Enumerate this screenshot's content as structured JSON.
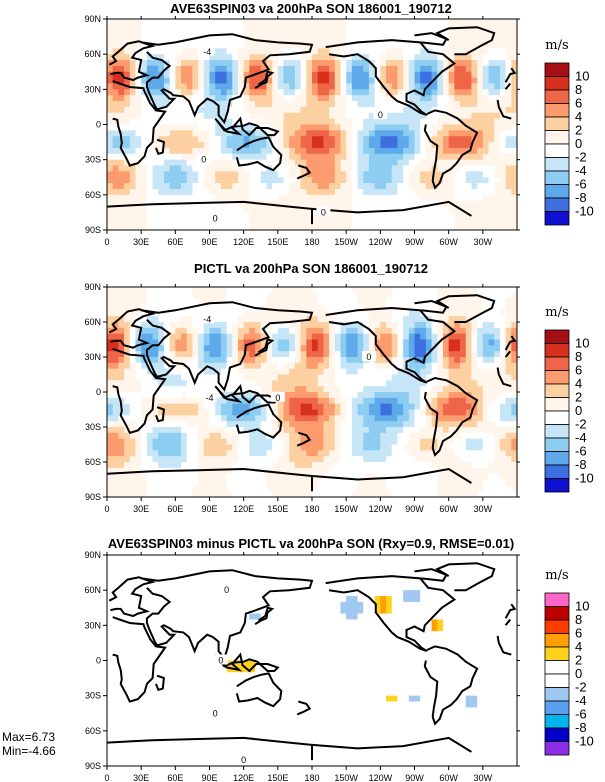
{
  "chart_data": [
    {
      "type": "heatmap",
      "title": "AVE63SPIN03 va 200hPa SON 186001_190712",
      "unit": "m/s",
      "xticks": [
        "0",
        "30E",
        "60E",
        "90E",
        "120E",
        "150E",
        "180",
        "150W",
        "120W",
        "90W",
        "60W",
        "30W"
      ],
      "yticks": [
        "90N",
        "60N",
        "30N",
        "0",
        "30S",
        "60S",
        "90S"
      ],
      "xlim": [
        0,
        360
      ],
      "ylim": [
        -90,
        90
      ],
      "colorbar": {
        "levels": [
          "10",
          "8",
          "6",
          "4",
          "2",
          "0",
          "-2",
          "-4",
          "-6",
          "-8",
          "-10"
        ],
        "colors": [
          "#a50f15",
          "#d7301f",
          "#ef6548",
          "#fc9b6e",
          "#fdd0a2",
          "#fff5eb",
          "#ffffff",
          "#c6e6f7",
          "#8ecdf2",
          "#5ea9ea",
          "#3d6fe0",
          "#1010d0"
        ]
      },
      "contour_labels": [
        {
          "text": "-4",
          "lon": 88,
          "lat": 62
        },
        {
          "text": "0",
          "lon": 240,
          "lat": 8
        },
        {
          "text": "0",
          "lon": 85,
          "lat": -30
        },
        {
          "text": "0",
          "lon": 95,
          "lat": -80
        },
        {
          "text": "0",
          "lon": 190,
          "lat": -75
        }
      ]
    },
    {
      "type": "heatmap",
      "title": "PICTL va 200hPa SON 186001_190712",
      "unit": "m/s",
      "xticks": [
        "0",
        "30E",
        "60E",
        "90E",
        "120E",
        "150E",
        "180",
        "150W",
        "120W",
        "90W",
        "60W",
        "30W"
      ],
      "yticks": [
        "90N",
        "60N",
        "30N",
        "0",
        "30S",
        "60S",
        "90S"
      ],
      "xlim": [
        0,
        360
      ],
      "ylim": [
        -90,
        90
      ],
      "colorbar": {
        "levels": [
          "10",
          "8",
          "6",
          "4",
          "2",
          "0",
          "-2",
          "-4",
          "-6",
          "-8",
          "-10"
        ],
        "colors": [
          "#a50f15",
          "#d7301f",
          "#ef6548",
          "#fc9b6e",
          "#fdd0a2",
          "#fff5eb",
          "#ffffff",
          "#c6e6f7",
          "#8ecdf2",
          "#5ea9ea",
          "#3d6fe0",
          "#1010d0"
        ]
      },
      "contour_labels": [
        {
          "text": "-4",
          "lon": 88,
          "lat": 62
        },
        {
          "text": "0",
          "lon": 230,
          "lat": 30
        },
        {
          "text": "-4",
          "lon": 90,
          "lat": -5
        },
        {
          "text": "0",
          "lon": 150,
          "lat": -5
        }
      ]
    },
    {
      "type": "heatmap",
      "title": "AVE63SPIN03 minus PICTL va 200hPa SON (Rxy=0.9, RMSE=0.01)",
      "unit": "m/s",
      "xticks": [
        "0",
        "30E",
        "60E",
        "90E",
        "120E",
        "150E",
        "180",
        "150W",
        "120W",
        "90W",
        "60W",
        "30W"
      ],
      "yticks": [
        "90N",
        "60N",
        "30N",
        "0",
        "30S",
        "60S",
        "90S"
      ],
      "xlim": [
        0,
        360
      ],
      "ylim": [
        -90,
        90
      ],
      "colorbar": {
        "levels": [
          "10",
          "8",
          "6",
          "4",
          "2",
          "0",
          "-2",
          "-4",
          "-6",
          "-8",
          "-10"
        ],
        "colors": [
          "#ff66cc",
          "#c00000",
          "#ff3c00",
          "#ffa000",
          "#ffd21e",
          "#ffffff",
          "#ffffff",
          "#a0c8f0",
          "#5aa0f0",
          "#00b4f0",
          "#0000c8",
          "#8c2de6"
        ]
      },
      "stats": {
        "max": "Max=6.73",
        "min": "Min=-4.66"
      },
      "contour_labels": [
        {
          "text": "0",
          "lon": 105,
          "lat": 60
        },
        {
          "text": "0",
          "lon": 100,
          "lat": 0
        },
        {
          "text": "0",
          "lon": 95,
          "lat": -45
        },
        {
          "text": "0",
          "lon": 120,
          "lat": -85
        }
      ]
    }
  ]
}
